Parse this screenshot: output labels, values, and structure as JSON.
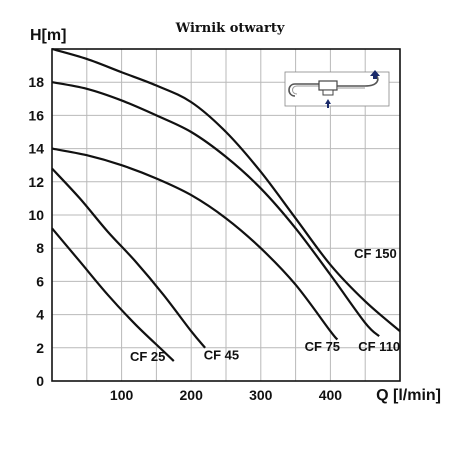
{
  "chart_data": {
    "type": "line",
    "title": "Wirnik otwarty",
    "ylabel": "H[m]",
    "xlabel": "Q [l/min]",
    "xlim": [
      0,
      500
    ],
    "ylim": [
      0,
      20
    ],
    "xticks": [
      100,
      200,
      300,
      400
    ],
    "yticks": [
      0,
      2,
      4,
      6,
      8,
      10,
      12,
      14,
      16,
      18
    ],
    "grid": true,
    "series": [
      {
        "name": "CF 25",
        "x": [
          0,
          40,
          80,
          120,
          160,
          175
        ],
        "y": [
          9.2,
          7.2,
          5.2,
          3.4,
          1.8,
          1.2
        ]
      },
      {
        "name": "CF 45",
        "x": [
          0,
          40,
          80,
          120,
          160,
          200,
          220
        ],
        "y": [
          12.8,
          11.0,
          9.0,
          7.2,
          5.2,
          3.0,
          2.0
        ]
      },
      {
        "name": "CF 75",
        "x": [
          0,
          50,
          100,
          150,
          200,
          250,
          300,
          350,
          400,
          410
        ],
        "y": [
          14.0,
          13.6,
          13.0,
          12.2,
          11.2,
          9.8,
          8.0,
          5.8,
          3.0,
          2.5
        ]
      },
      {
        "name": "CF 110",
        "x": [
          0,
          50,
          100,
          150,
          200,
          250,
          300,
          350,
          400,
          450,
          470
        ],
        "y": [
          18.0,
          17.6,
          16.9,
          16.0,
          15.0,
          13.5,
          11.6,
          9.2,
          6.4,
          3.5,
          2.7
        ]
      },
      {
        "name": "CF 150",
        "x": [
          0,
          50,
          100,
          150,
          200,
          250,
          300,
          350,
          400,
          450,
          500
        ],
        "y": [
          20.0,
          19.4,
          18.6,
          17.8,
          16.8,
          15.0,
          12.6,
          9.8,
          7.0,
          4.8,
          3.0
        ]
      }
    ]
  }
}
